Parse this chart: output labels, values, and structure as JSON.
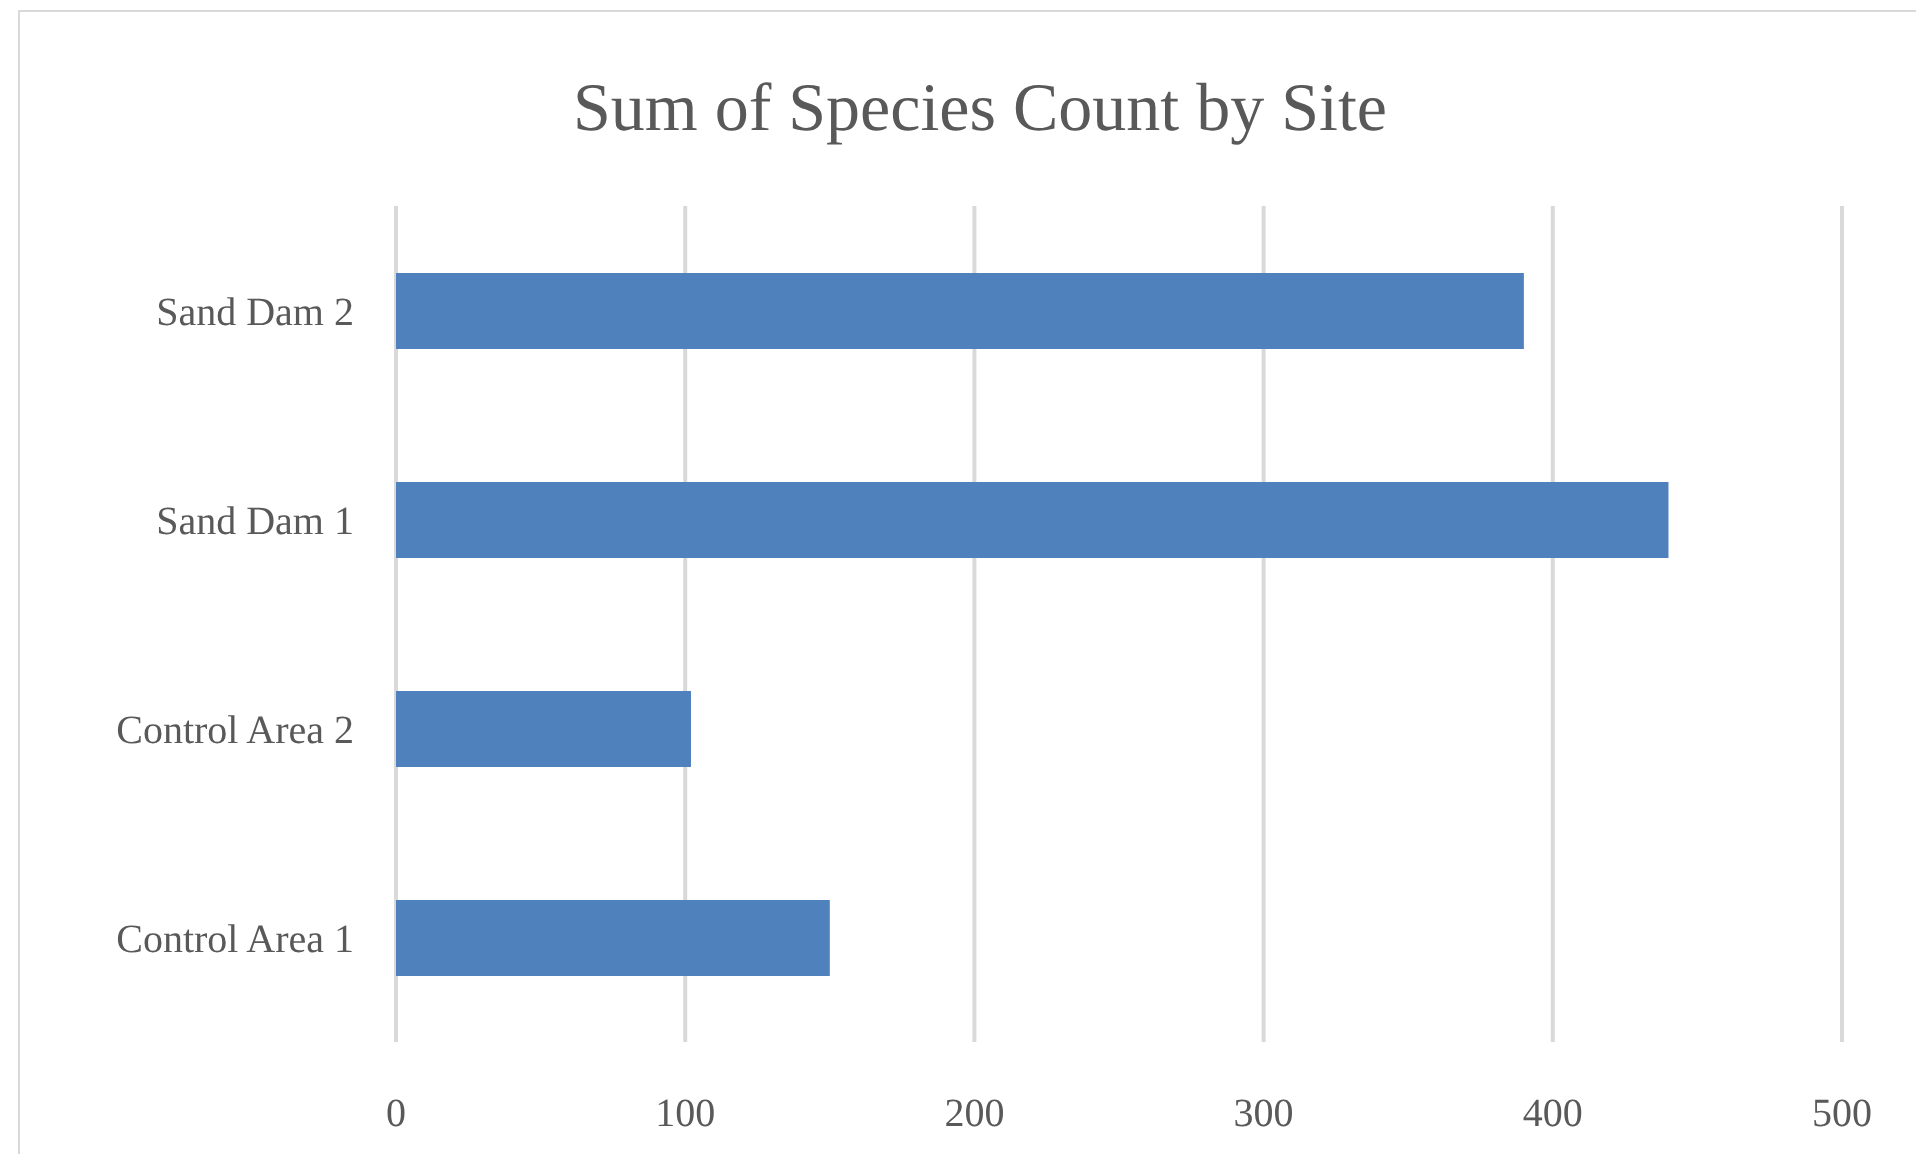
{
  "chart_data": {
    "type": "bar",
    "title": "Sum of Species Count by Site",
    "orientation": "horizontal",
    "categories": [
      "Sand Dam 2",
      "Sand Dam 1",
      "Control Area 2",
      "Control Area 1"
    ],
    "values": [
      390,
      440,
      102,
      150
    ],
    "color": "#4f81bd",
    "xlim": [
      0,
      500
    ],
    "xticks": [
      0,
      100,
      200,
      300,
      400,
      500
    ],
    "grid": "x"
  }
}
